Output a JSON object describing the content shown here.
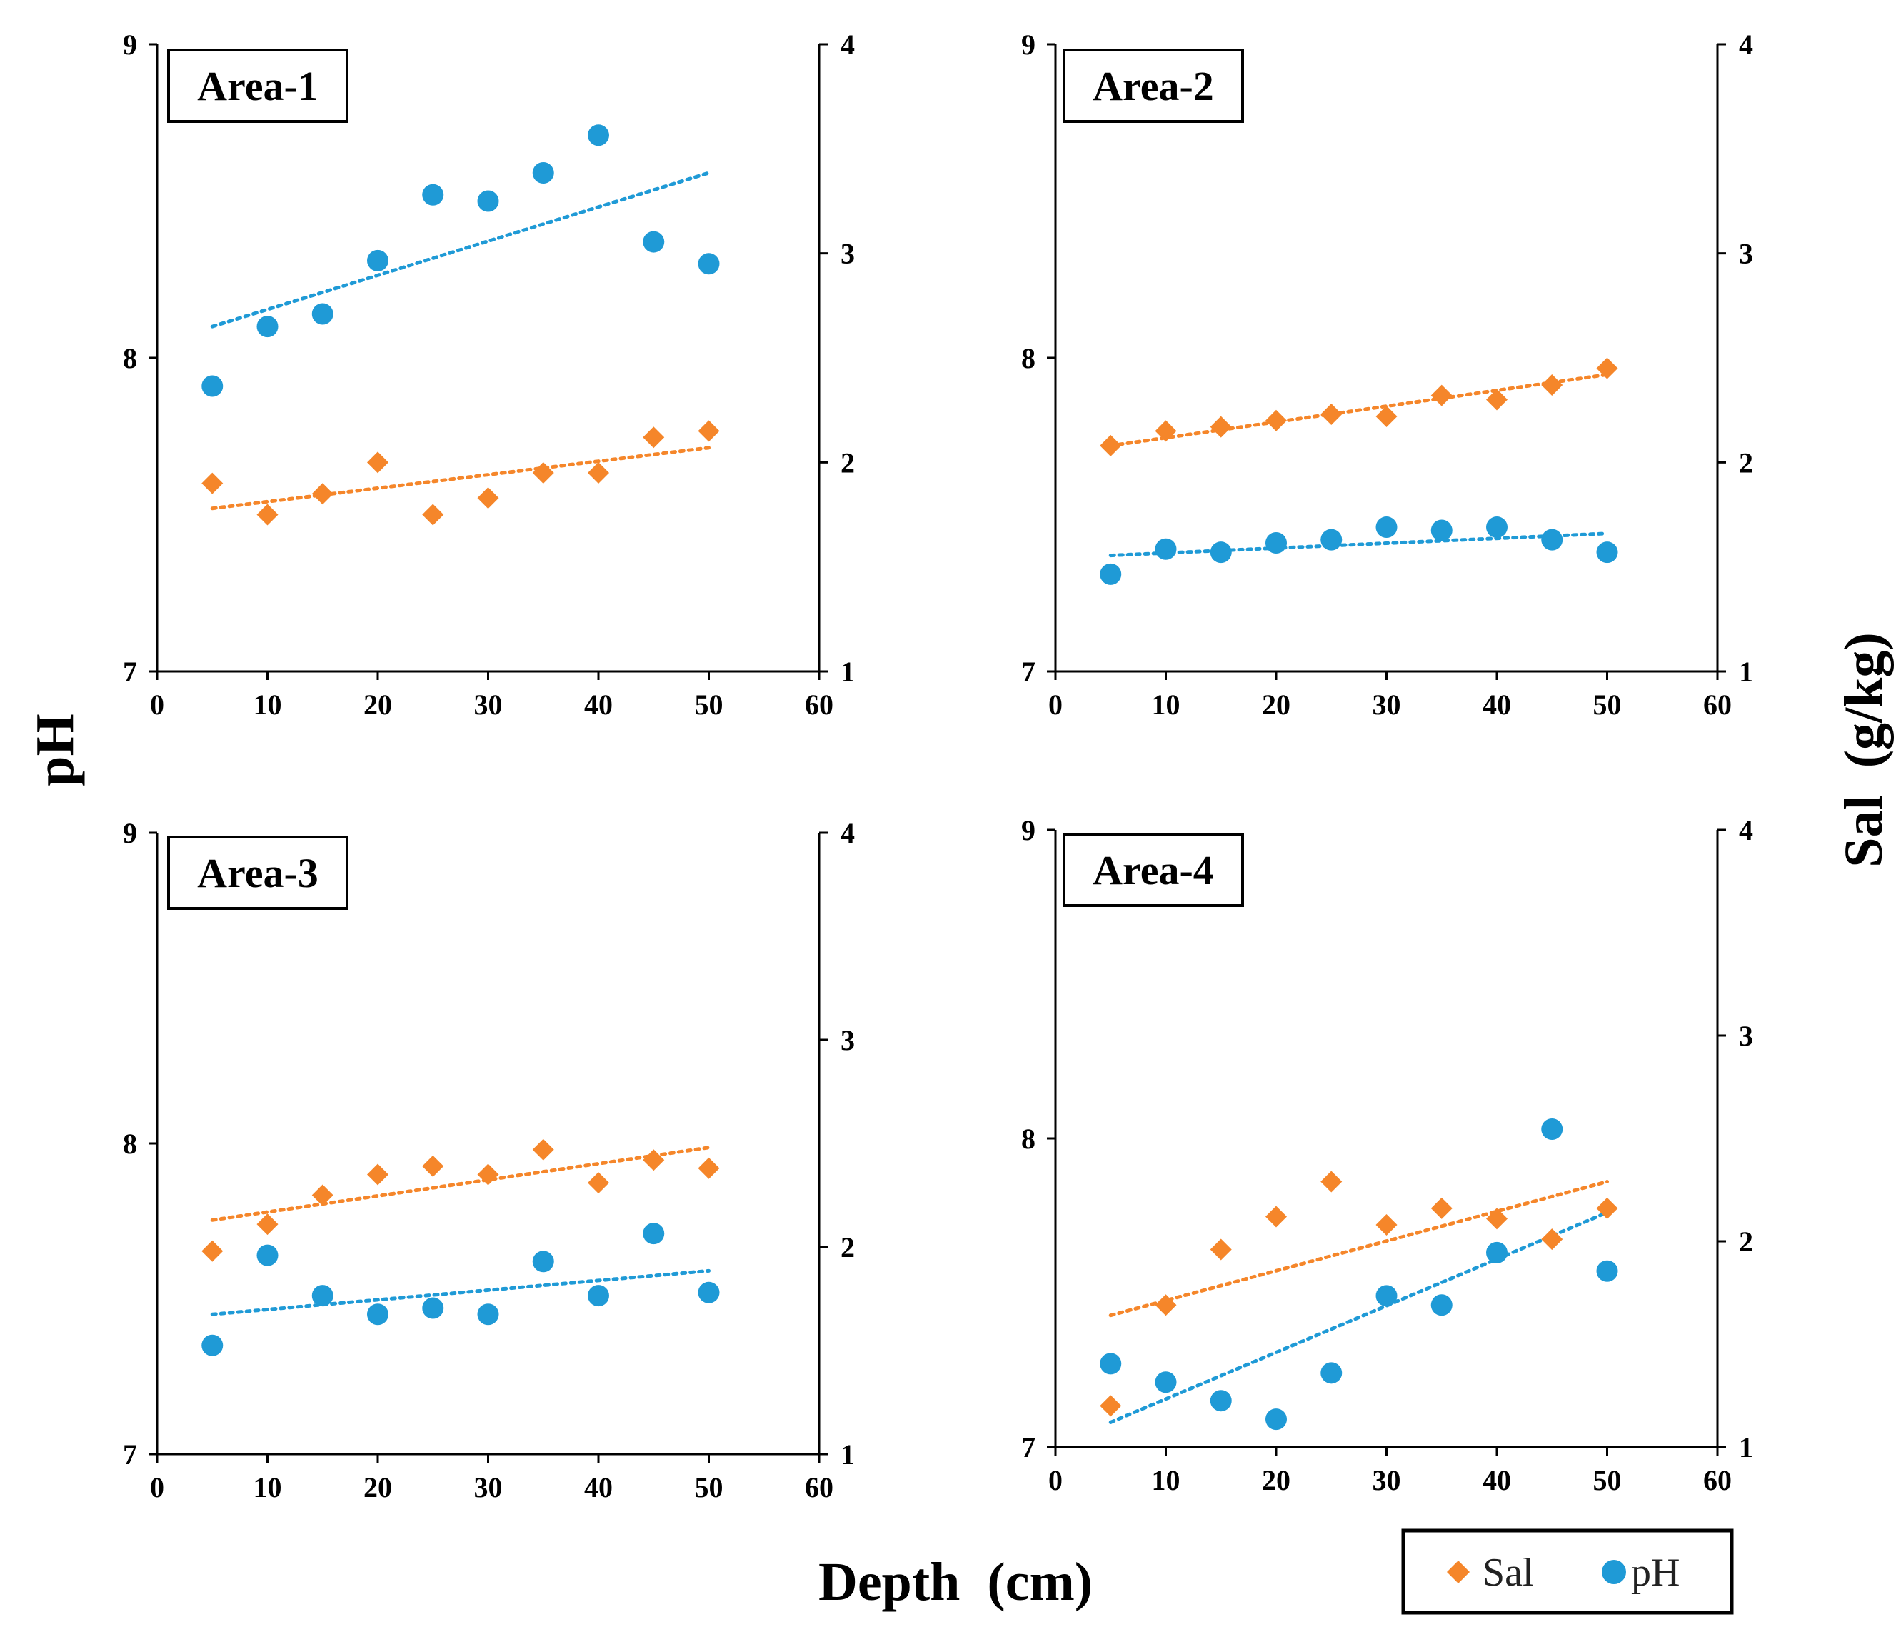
{
  "chart_data": {
    "type": "scatter",
    "x_title": "Depth  (cm)",
    "y_left_title": "pH",
    "y_right_title": "Sal  (g/kg)",
    "colors": {
      "sal": "#f5862a",
      "ph": "#1f9ad6"
    },
    "legend": [
      {
        "name": "Sal",
        "marker": "diamond",
        "color": "#f5862a"
      },
      {
        "name": "pH",
        "marker": "circle",
        "color": "#1f9ad6"
      }
    ],
    "legend_position": "bottom-right",
    "x_range": [
      0,
      60
    ],
    "x_ticks": [
      "0",
      "10",
      "20",
      "30",
      "40",
      "50",
      "60"
    ],
    "y_left_range": [
      7,
      9
    ],
    "y_left_ticks": [
      "7",
      "8",
      "9"
    ],
    "y_right_range": [
      1,
      4
    ],
    "y_right_ticks": [
      "1",
      "2",
      "3",
      "4"
    ],
    "panels": [
      {
        "label": "Area-1",
        "x": [
          5,
          10,
          15,
          20,
          25,
          30,
          35,
          40,
          45,
          50
        ],
        "ph": [
          7.91,
          8.1,
          8.14,
          8.31,
          8.52,
          8.5,
          8.59,
          8.71,
          8.37,
          8.3
        ],
        "ph_trend": [
          8.1,
          8.59
        ],
        "sal": [
          1.9,
          1.75,
          1.85,
          2.0,
          1.75,
          1.83,
          1.95,
          1.95,
          2.12,
          2.15
        ],
        "sal_trend": [
          1.78,
          2.07
        ]
      },
      {
        "label": "Area-2",
        "x": [
          5,
          10,
          15,
          20,
          25,
          30,
          35,
          40,
          45,
          50
        ],
        "ph": [
          7.31,
          7.39,
          7.38,
          7.41,
          7.42,
          7.46,
          7.45,
          7.46,
          7.42,
          7.38
        ],
        "ph_trend": [
          7.37,
          7.44
        ],
        "sal": [
          2.08,
          2.15,
          2.17,
          2.2,
          2.23,
          2.22,
          2.32,
          2.3,
          2.37,
          2.45
        ],
        "sal_trend": [
          2.08,
          2.42
        ]
      },
      {
        "label": "Area-3",
        "x": [
          5,
          10,
          15,
          20,
          25,
          30,
          35,
          40,
          45,
          50
        ],
        "ph": [
          7.35,
          7.64,
          7.51,
          7.45,
          7.47,
          7.45,
          7.62,
          7.51,
          7.71,
          7.52
        ],
        "ph_trend": [
          7.45,
          7.59
        ],
        "sal": [
          1.98,
          2.11,
          2.25,
          2.35,
          2.39,
          2.35,
          2.47,
          2.31,
          2.42,
          2.38
        ],
        "sal_trend": [
          2.13,
          2.48
        ]
      },
      {
        "label": "Area-4",
        "x": [
          5,
          10,
          15,
          20,
          25,
          30,
          35,
          40,
          45,
          50
        ],
        "ph": [
          7.27,
          7.21,
          7.15,
          7.09,
          7.24,
          7.49,
          7.46,
          7.63,
          8.03,
          7.57
        ],
        "ph_trend": [
          7.08,
          7.76
        ],
        "sal": [
          1.2,
          1.69,
          1.96,
          2.12,
          2.29,
          2.08,
          2.16,
          2.11,
          2.01,
          2.16
        ],
        "sal_trend": [
          1.64,
          2.29
        ]
      }
    ]
  }
}
